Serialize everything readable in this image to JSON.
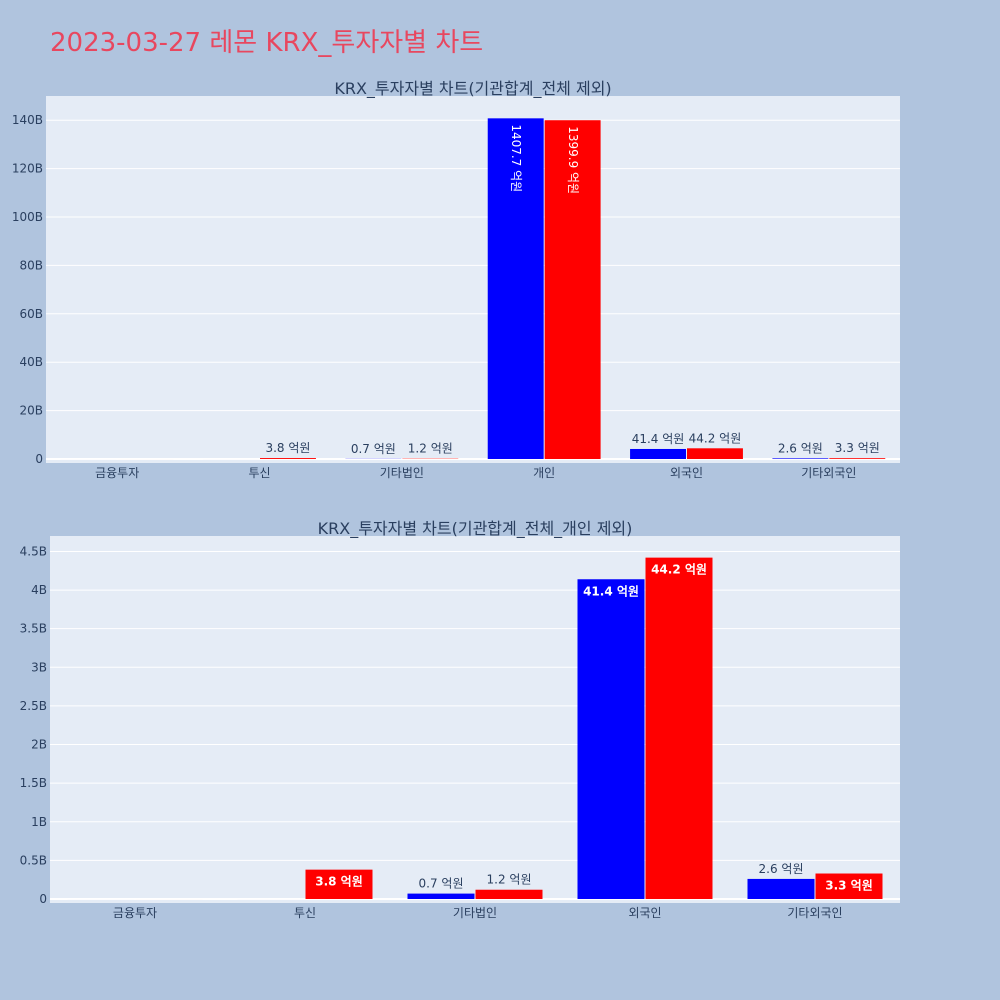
{
  "page": {
    "title": "2023-03-27 레몬 KRX_투자자별 차트",
    "background": "#b0c4de",
    "title_color": "#e8475f"
  },
  "colors": {
    "series_a": "#0000ff",
    "series_b": "#ff0000",
    "plot_bg": "#e5ecf6",
    "grid": "#ffffff",
    "text": "#2a3f5f"
  },
  "chart_data": [
    {
      "type": "bar",
      "title": "KRX_투자자별 차트(기관합계_전체 제외)",
      "categories": [
        "금융투자",
        "투신",
        "기타법인",
        "개인",
        "외국인",
        "기타외국인"
      ],
      "series": [
        {
          "color": "#0000ff",
          "values": [
            0,
            0,
            70000000.0,
            140770000000.0,
            4140000000.0,
            260000000.0
          ],
          "labels": [
            "",
            "",
            "0.7 억원",
            "1407.7 억원",
            "41.4 억원",
            "2.6 억원"
          ]
        },
        {
          "color": "#ff0000",
          "values": [
            0,
            380000000.0,
            120000000.0,
            139990000000.0,
            4420000000.0,
            330000000.0
          ],
          "labels": [
            "",
            "3.8 억원",
            "1.2 억원",
            "1399.9 억원",
            "44.2 억원",
            "3.3 억원"
          ]
        }
      ],
      "ylim": [
        0,
        150000000000.0
      ],
      "yticks": [
        0,
        20000000000.0,
        40000000000.0,
        60000000000.0,
        80000000000.0,
        100000000000.0,
        120000000000.0,
        140000000000.0
      ],
      "ytick_labels": [
        "0",
        "20B",
        "40B",
        "60B",
        "80B",
        "100B",
        "120B",
        "140B"
      ],
      "grid": true,
      "legend": "none"
    },
    {
      "type": "bar",
      "title": "KRX_투자자별 차트(기관합계_전체_개인 제외)",
      "categories": [
        "금융투자",
        "투신",
        "기타법인",
        "외국인",
        "기타외국인"
      ],
      "series": [
        {
          "color": "#0000ff",
          "values": [
            0,
            0,
            70000000.0,
            4140000000.0,
            260000000.0
          ],
          "labels": [
            "",
            "",
            "0.7 억원",
            "41.4 억원",
            "2.6 억원"
          ]
        },
        {
          "color": "#ff0000",
          "values": [
            0,
            380000000.0,
            120000000.0,
            4420000000.0,
            330000000.0
          ],
          "labels": [
            "",
            "3.8 억원",
            "1.2 억원",
            "44.2 억원",
            "3.3 억원"
          ]
        }
      ],
      "ylim": [
        0,
        4700000000.0
      ],
      "yticks": [
        0,
        500000000.0,
        1000000000.0,
        1500000000.0,
        2000000000.0,
        2500000000.0,
        3000000000.0,
        3500000000.0,
        4000000000.0,
        4500000000.0
      ],
      "ytick_labels": [
        "0",
        "0.5B",
        "1B",
        "1.5B",
        "2B",
        "2.5B",
        "3B",
        "3.5B",
        "4B",
        "4.5B"
      ],
      "grid": true,
      "legend": "none"
    }
  ]
}
